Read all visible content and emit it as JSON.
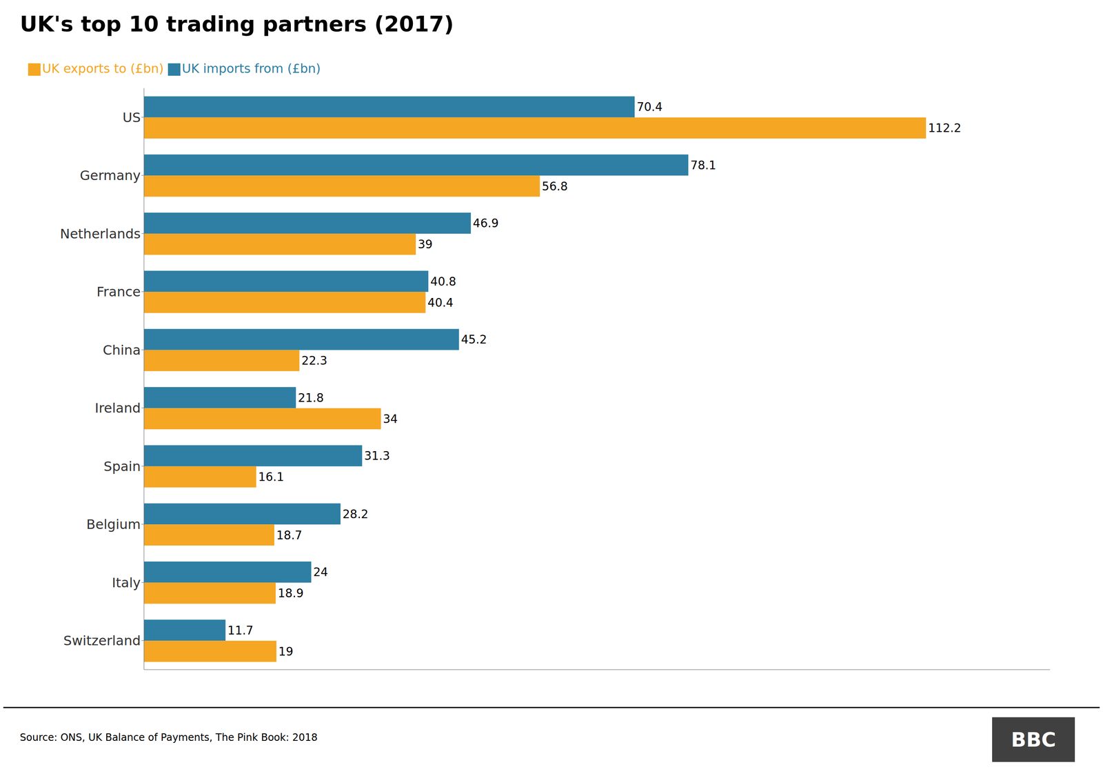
{
  "chart_data": {
    "type": "bar",
    "orientation": "horizontal",
    "title": "UK's top 10 trading partners (2017)",
    "categories": [
      "US",
      "Germany",
      "Netherlands",
      "France",
      "China",
      "Ireland",
      "Spain",
      "Belgium",
      "Italy",
      "Switzerland"
    ],
    "series": [
      {
        "name": "UK imports from (£bn)",
        "color": "#2e7fa3",
        "values": [
          70.4,
          78.1,
          46.9,
          40.8,
          45.2,
          21.8,
          31.3,
          28.2,
          24.0,
          11.7
        ]
      },
      {
        "name": "UK exports to (£bn)",
        "color": "#f5a623",
        "values": [
          112.2,
          56.8,
          39.0,
          40.4,
          22.3,
          34.0,
          16.1,
          18.7,
          18.9,
          19.0
        ]
      }
    ],
    "xlim": [
      0,
      130
    ],
    "data_labels": true,
    "tick_labels": "y",
    "grid": false,
    "legend": "top",
    "annotations": [
      "Source: ONS, UK Balance of Payments, The Pink Book: 2018",
      "BBC"
    ]
  }
}
